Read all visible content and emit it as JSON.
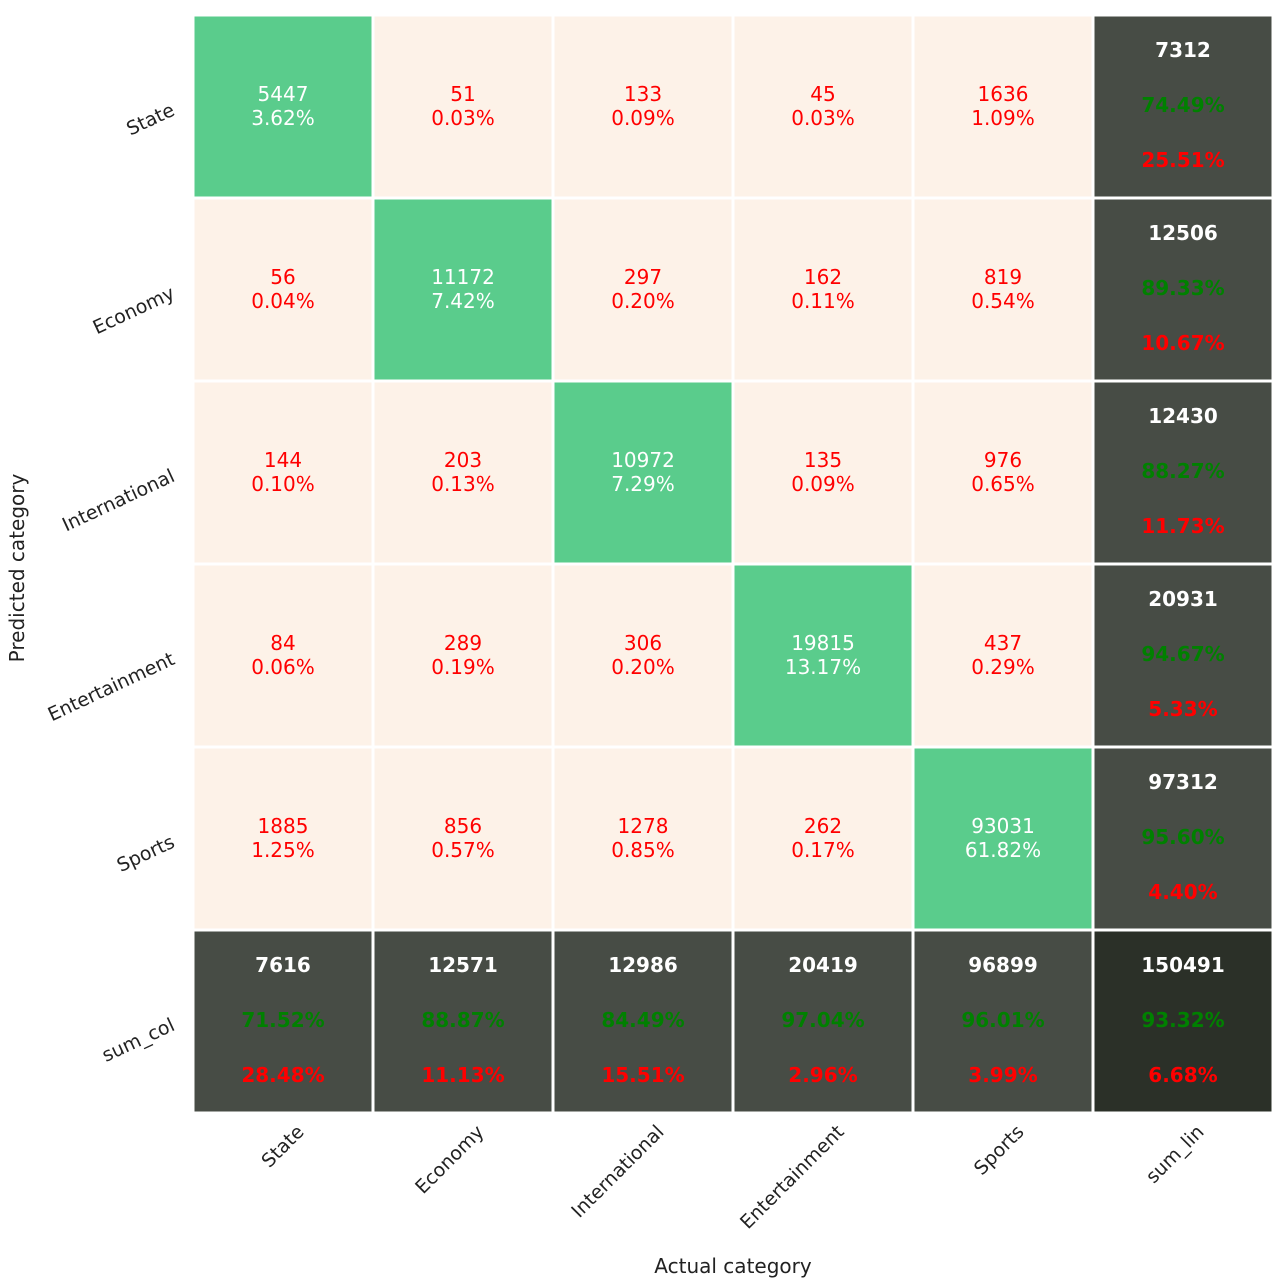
{
  "chart_data": {
    "type": "heatmap",
    "xlabel": "Actual category",
    "ylabel": "Predicted category",
    "row_labels": [
      "State",
      "Economy",
      "International",
      "Entertainment",
      "Sports",
      "sum_col"
    ],
    "col_labels": [
      "State",
      "Economy",
      "International",
      "Entertainment",
      "Sports",
      "sum_lin"
    ],
    "matrix": [
      [
        5447,
        51,
        133,
        45,
        1636
      ],
      [
        56,
        11172,
        297,
        162,
        819
      ],
      [
        144,
        203,
        10972,
        135,
        976
      ],
      [
        84,
        289,
        306,
        19815,
        437
      ],
      [
        1885,
        856,
        1278,
        262,
        93031
      ]
    ],
    "matrix_pct": [
      [
        "3.62%",
        "0.03%",
        "0.09%",
        "0.03%",
        "1.09%"
      ],
      [
        "0.04%",
        "7.42%",
        "0.20%",
        "0.11%",
        "0.54%"
      ],
      [
        "0.10%",
        "0.13%",
        "7.29%",
        "0.09%",
        "0.65%"
      ],
      [
        "0.06%",
        "0.19%",
        "0.20%",
        "13.17%",
        "0.29%"
      ],
      [
        "1.25%",
        "0.57%",
        "0.85%",
        "0.17%",
        "61.82%"
      ]
    ],
    "row_totals": [
      {
        "total": "7312",
        "correct": "74.49%",
        "error": "25.51%"
      },
      {
        "total": "12506",
        "correct": "89.33%",
        "error": "10.67%"
      },
      {
        "total": "12430",
        "correct": "88.27%",
        "error": "11.73%"
      },
      {
        "total": "20931",
        "correct": "94.67%",
        "error": "5.33%"
      },
      {
        "total": "97312",
        "correct": "95.60%",
        "error": "4.40%"
      }
    ],
    "col_totals": [
      {
        "total": "7616",
        "correct": "71.52%",
        "error": "28.48%"
      },
      {
        "total": "12571",
        "correct": "88.87%",
        "error": "11.13%"
      },
      {
        "total": "12986",
        "correct": "84.49%",
        "error": "15.51%"
      },
      {
        "total": "20419",
        "correct": "97.04%",
        "error": "2.96%"
      },
      {
        "total": "96899",
        "correct": "96.01%",
        "error": "3.99%"
      }
    ],
    "grand_total": {
      "total": "150491",
      "correct": "93.32%",
      "error": "6.68%"
    },
    "colors": {
      "diagonal": "#5ACC8C",
      "off_diagonal": "#FDF2E8",
      "total_cell": "#474C45",
      "grand_total_cell": "#2B3028",
      "off_diagonal_text": "#FF0000",
      "diagonal_text": "#FFFFFF",
      "correct_text": "#008000",
      "error_text": "#FF0000"
    }
  }
}
